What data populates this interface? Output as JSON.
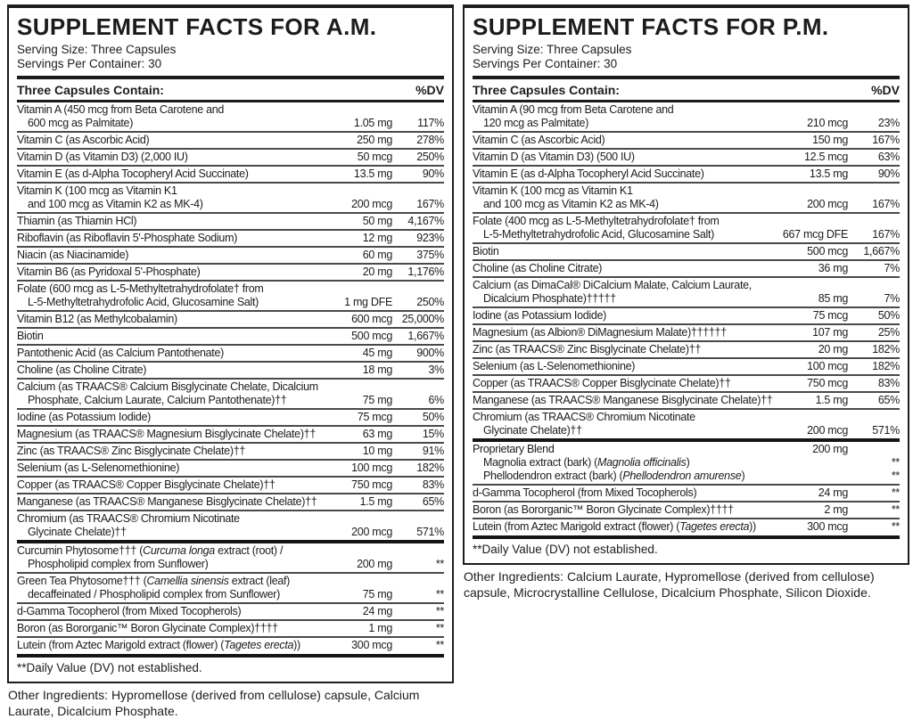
{
  "label": {
    "text_color": "#1c1c1c",
    "border_color": "#1d1d1d",
    "panels": [
      {
        "id": "am",
        "title": "SUPPLEMENT FACTS FOR A.M.",
        "serving_size": "Serving Size: Three Capsules",
        "servings_per_container": "Servings Per Container: 30",
        "contains_header": "Three Capsules Contain:",
        "dv_header": "%DV",
        "rows": [
          {
            "lines": [
              {
                "t": "Vitamin A (450 mcg from Beta Carotene and"
              },
              {
                "t": "600 mcg as Palmitate)",
                "ind": true,
                "amt": "1.05 mg",
                "dv": "117%"
              }
            ]
          },
          {
            "lines": [
              {
                "t": "Vitamin C (as Ascorbic Acid)",
                "amt": "250 mg",
                "dv": "278%"
              }
            ]
          },
          {
            "lines": [
              {
                "t": "Vitamin D (as Vitamin D3) (2,000 IU)",
                "amt": "50 mcg",
                "dv": "250%"
              }
            ]
          },
          {
            "lines": [
              {
                "t": "Vitamin E (as d-Alpha Tocopheryl Acid Succinate)",
                "amt": "13.5 mg",
                "dv": "90%"
              }
            ]
          },
          {
            "lines": [
              {
                "t": "Vitamin K (100 mcg as Vitamin K1"
              },
              {
                "t": "and 100 mcg as Vitamin K2 as MK-4)",
                "ind": true,
                "amt": "200 mcg",
                "dv": "167%"
              }
            ]
          },
          {
            "lines": [
              {
                "t": "Thiamin (as Thiamin HCl)",
                "amt": "50 mg",
                "dv": "4,167%"
              }
            ]
          },
          {
            "lines": [
              {
                "t": "Riboflavin (as Riboflavin 5'-Phosphate Sodium)",
                "amt": "12 mg",
                "dv": "923%"
              }
            ]
          },
          {
            "lines": [
              {
                "t": "Niacin (as Niacinamide)",
                "amt": "60 mg",
                "dv": "375%"
              }
            ]
          },
          {
            "lines": [
              {
                "t": "Vitamin B6 (as Pyridoxal 5'-Phosphate)",
                "amt": "20 mg",
                "dv": "1,176%"
              }
            ]
          },
          {
            "lines": [
              {
                "t": "Folate (600 mcg as L-5-Methyltetrahydrofolate† from"
              },
              {
                "t": "L-5-Methyltetrahydrofolic Acid, Glucosamine Salt)",
                "ind": true,
                "amt": "1 mg DFE",
                "dv": "250%"
              }
            ]
          },
          {
            "lines": [
              {
                "t": "Vitamin B12 (as Methylcobalamin)",
                "amt": "600 mcg",
                "dv": "25,000%"
              }
            ]
          },
          {
            "lines": [
              {
                "t": "Biotin",
                "amt": "500 mcg",
                "dv": "1,667%"
              }
            ]
          },
          {
            "lines": [
              {
                "t": "Pantothenic Acid (as Calcium Pantothenate)",
                "amt": "45 mg",
                "dv": "900%"
              }
            ]
          },
          {
            "lines": [
              {
                "t": "Choline (as Choline Citrate)",
                "amt": "18 mg",
                "dv": "3%"
              }
            ]
          },
          {
            "lines": [
              {
                "t": "Calcium (as TRAACS® Calcium Bisglycinate Chelate, Dicalcium"
              },
              {
                "t": "Phosphate, Calcium Laurate, Calcium Pantothenate)††",
                "ind": true,
                "amt": "75 mg",
                "dv": "6%"
              }
            ]
          },
          {
            "lines": [
              {
                "t": "Iodine (as Potassium Iodide)",
                "amt": "75 mcg",
                "dv": "50%"
              }
            ]
          },
          {
            "lines": [
              {
                "t": "Magnesium (as TRAACS® Magnesium Bisglycinate Chelate)††",
                "amt": "63 mg",
                "dv": "15%"
              }
            ]
          },
          {
            "lines": [
              {
                "t": "Zinc (as TRAACS® Zinc Bisglycinate Chelate)††",
                "amt": "10 mg",
                "dv": "91%"
              }
            ]
          },
          {
            "lines": [
              {
                "t": "Selenium (as L-Selenomethionine)",
                "amt": "100 mcg",
                "dv": "182%"
              }
            ]
          },
          {
            "lines": [
              {
                "t": "Copper (as TRAACS® Copper Bisglycinate Chelate)††",
                "amt": "750 mcg",
                "dv": "83%"
              }
            ]
          },
          {
            "lines": [
              {
                "t": "Manganese (as TRAACS® Manganese Bisglycinate Chelate)††",
                "amt": "1.5 mg",
                "dv": "65%"
              }
            ]
          },
          {
            "lines": [
              {
                "t": "Chromium (as TRAACS® Chromium Nicotinate"
              },
              {
                "t": "Glycinate Chelate)††",
                "ind": true,
                "amt": "200 mcg",
                "dv": "571%"
              }
            ]
          },
          {
            "thick": true,
            "lines": [
              {
                "t": "Curcumin Phytosome††† (_Curcuma longa_ extract (root) /"
              },
              {
                "t": "Phospholipid complex from Sunflower)",
                "ind": true,
                "amt": "200 mg",
                "dv": "**"
              }
            ]
          },
          {
            "lines": [
              {
                "t": "Green Tea Phytosome††† (_Camellia sinensis_ extract (leaf)"
              },
              {
                "t": "decaffeinated / Phospholipid complex from Sunflower)",
                "ind": true,
                "amt": "75 mg",
                "dv": "**"
              }
            ]
          },
          {
            "lines": [
              {
                "t": "d-Gamma Tocopherol (from Mixed Tocopherols)",
                "amt": "24 mg",
                "dv": "**"
              }
            ]
          },
          {
            "lines": [
              {
                "t": "Boron (as Bororganic™ Boron Glycinate Complex)††††",
                "amt": "1 mg",
                "dv": "**"
              }
            ]
          },
          {
            "lines": [
              {
                "t": "Lutein (from Aztec Marigold extract (flower) (_Tagetes erecta_))",
                "amt": "300 mcg",
                "dv": "**"
              }
            ]
          }
        ],
        "footnote": "**Daily Value (DV) not established.",
        "other_ingredients": "Other Ingredients: Hypromellose (derived from cellulose) capsule, Calcium Laurate, Dicalcium Phosphate."
      },
      {
        "id": "pm",
        "title": "SUPPLEMENT FACTS FOR P.M.",
        "serving_size": "Serving Size: Three Capsules",
        "servings_per_container": "Servings Per Container: 30",
        "contains_header": "Three Capsules Contain:",
        "dv_header": "%DV",
        "rows": [
          {
            "lines": [
              {
                "t": "Vitamin A (90 mcg from Beta Carotene and"
              },
              {
                "t": "120 mcg as Palmitate)",
                "ind": true,
                "amt": "210 mcg",
                "dv": "23%"
              }
            ]
          },
          {
            "lines": [
              {
                "t": "Vitamin C (as Ascorbic Acid)",
                "amt": "150 mg",
                "dv": "167%"
              }
            ]
          },
          {
            "lines": [
              {
                "t": "Vitamin D (as Vitamin D3) (500 IU)",
                "amt": "12.5 mcg",
                "dv": "63%"
              }
            ]
          },
          {
            "lines": [
              {
                "t": "Vitamin E (as d-Alpha Tocopheryl Acid Succinate)",
                "amt": "13.5 mg",
                "dv": "90%"
              }
            ]
          },
          {
            "lines": [
              {
                "t": "Vitamin K (100 mcg as Vitamin K1"
              },
              {
                "t": "and 100 mcg as Vitamin K2 as MK-4)",
                "ind": true,
                "amt": "200 mcg",
                "dv": "167%"
              }
            ]
          },
          {
            "lines": [
              {
                "t": "Folate (400 mcg as L-5-Methyltetrahydrofolate† from"
              },
              {
                "t": "L-5-Methyltetrahydrofolic Acid, Glucosamine Salt)",
                "ind": true,
                "amt": "667 mcg DFE",
                "dv": "167%"
              }
            ]
          },
          {
            "lines": [
              {
                "t": "Biotin",
                "amt": "500 mcg",
                "dv": "1,667%"
              }
            ]
          },
          {
            "lines": [
              {
                "t": "Choline (as Choline Citrate)",
                "amt": "36 mg",
                "dv": "7%"
              }
            ]
          },
          {
            "lines": [
              {
                "t": "Calcium (as DimaCal® DiCalcium Malate, Calcium Laurate,"
              },
              {
                "t": "Dicalcium Phosphate)†††††",
                "ind": true,
                "amt": "85 mg",
                "dv": "7%"
              }
            ]
          },
          {
            "lines": [
              {
                "t": "Iodine (as Potassium Iodide)",
                "amt": "75 mcg",
                "dv": "50%"
              }
            ]
          },
          {
            "lines": [
              {
                "t": "Magnesium (as Albion® DiMagnesium Malate)††††††",
                "amt": "107 mg",
                "dv": "25%"
              }
            ]
          },
          {
            "lines": [
              {
                "t": "Zinc (as TRAACS® Zinc Bisglycinate Chelate)††",
                "amt": "20 mg",
                "dv": "182%"
              }
            ]
          },
          {
            "lines": [
              {
                "t": "Selenium (as L-Selenomethionine)",
                "amt": "100 mcg",
                "dv": "182%"
              }
            ]
          },
          {
            "lines": [
              {
                "t": "Copper (as TRAACS® Copper Bisglycinate Chelate)††",
                "amt": "750 mcg",
                "dv": "83%"
              }
            ]
          },
          {
            "lines": [
              {
                "t": "Manganese (as TRAACS® Manganese Bisglycinate Chelate)††",
                "amt": "1.5 mg",
                "dv": "65%"
              }
            ]
          },
          {
            "lines": [
              {
                "t": "Chromium (as TRAACS® Chromium Nicotinate"
              },
              {
                "t": "Glycinate Chelate)††",
                "ind": true,
                "amt": "200 mcg",
                "dv": "571%"
              }
            ]
          },
          {
            "thick": true,
            "lines": [
              {
                "t": "Proprietary Blend",
                "amt": "200 mg"
              },
              {
                "t": "Magnolia extract (bark) (_Magnolia officinalis_)",
                "ind": true,
                "dv": "**"
              },
              {
                "t": "Phellodendron extract (bark) (_Phellodendron amurense_)",
                "ind": true,
                "dv": "**"
              }
            ]
          },
          {
            "lines": [
              {
                "t": "d-Gamma Tocopherol (from Mixed Tocopherols)",
                "amt": "24 mg",
                "dv": "**"
              }
            ]
          },
          {
            "lines": [
              {
                "t": "Boron (as Bororganic™ Boron Glycinate Complex)††††",
                "amt": "2 mg",
                "dv": "**"
              }
            ]
          },
          {
            "lines": [
              {
                "t": "Lutein (from Aztec Marigold extract (flower) (_Tagetes erecta_))",
                "amt": "300 mcg",
                "dv": "**"
              }
            ]
          }
        ],
        "footnote": "**Daily Value (DV) not established.",
        "other_ingredients": "Other Ingredients: Calcium Laurate, Hypromellose (derived from cellulose) capsule, Microcrystalline Cellulose, Dicalcium Phosphate, Silicon Dioxide."
      }
    ]
  }
}
